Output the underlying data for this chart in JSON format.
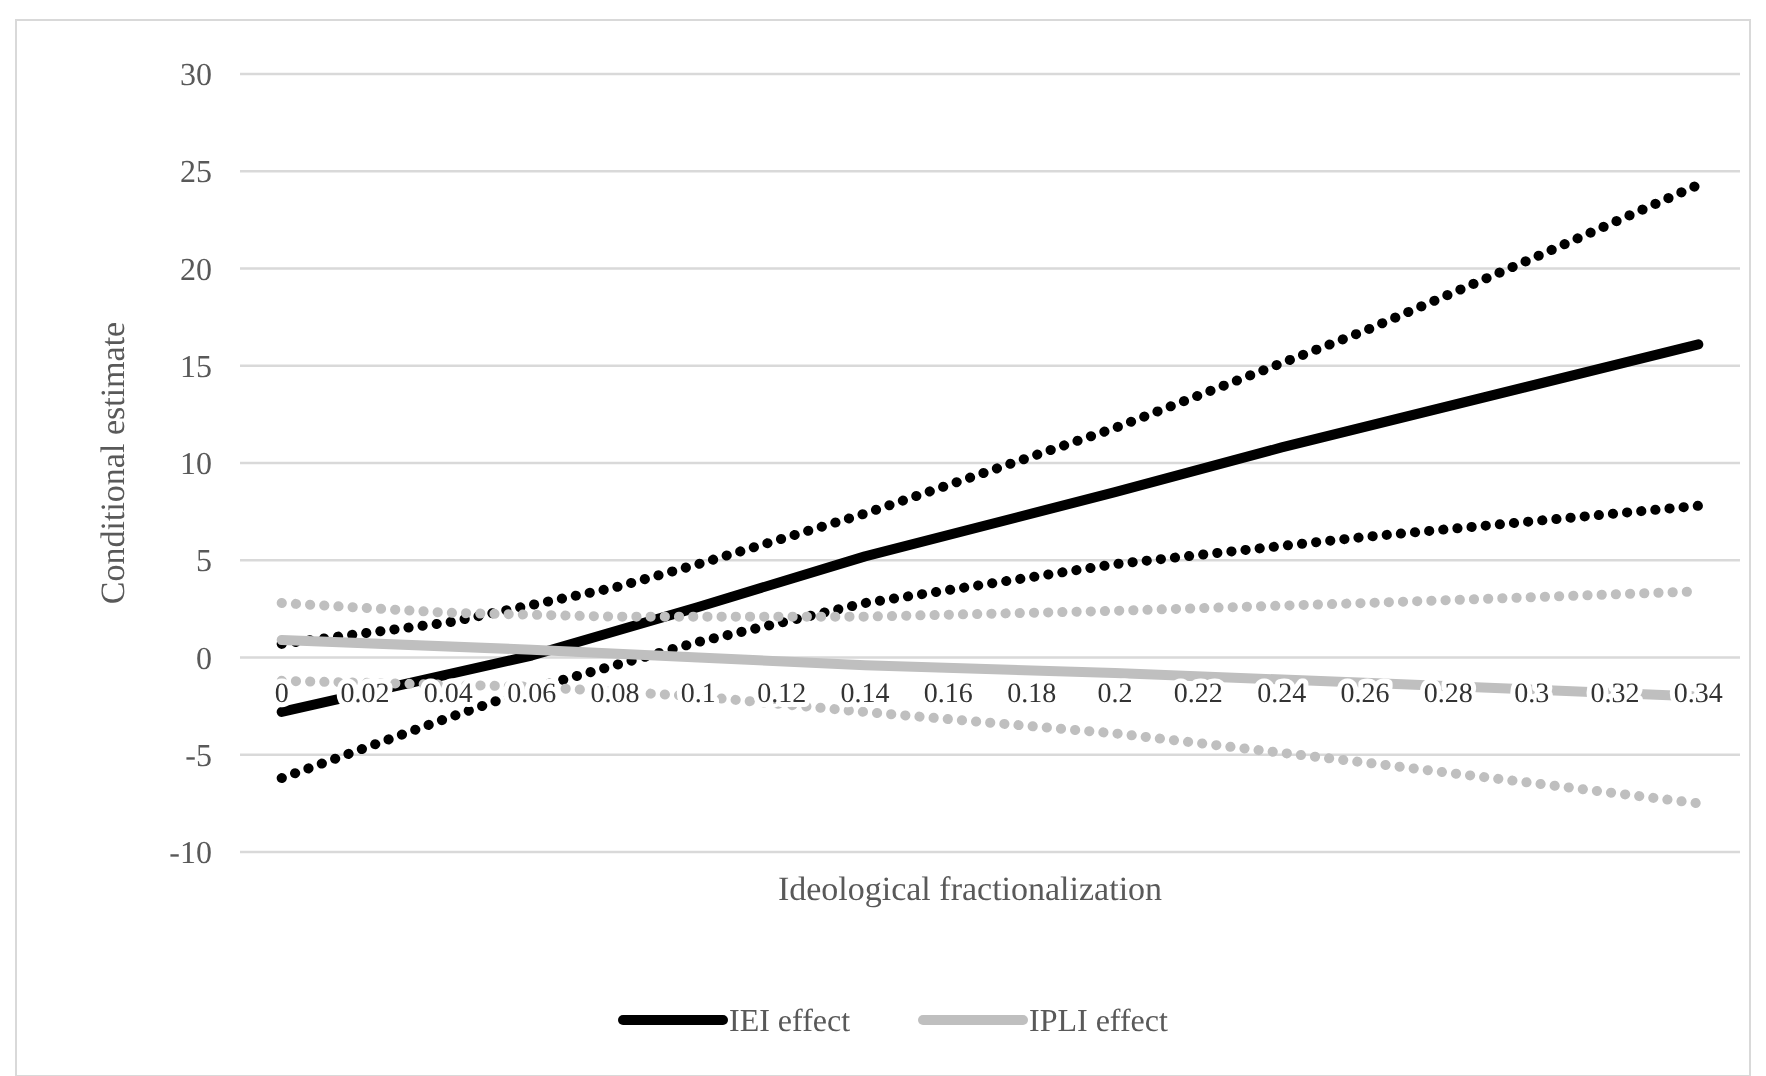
{
  "chart_data": {
    "type": "line",
    "xlabel": "Ideological fractionalization",
    "ylabel": "Conditional estimate",
    "xlim": [
      -0.01,
      0.35
    ],
    "xticks": [
      0,
      0.02,
      0.04,
      0.06,
      0.08,
      0.1,
      0.12,
      0.14,
      0.16,
      0.18,
      0.2,
      0.22,
      0.24,
      0.26,
      0.28,
      0.3,
      0.32,
      0.34
    ],
    "ylim": [
      -10,
      30
    ],
    "yticks": [
      -10,
      -5,
      0,
      5,
      10,
      15,
      20,
      25,
      30
    ],
    "grid": "y",
    "legend": "bottom",
    "marker": "none",
    "series": [
      {
        "name": "IEI effect",
        "color": "#000000",
        "line_style": "solid",
        "x": [
          0,
          0.06,
          0.1,
          0.14,
          0.2,
          0.24,
          0.34
        ],
        "values": [
          -2.8,
          0.1,
          2.6,
          5.2,
          8.5,
          10.8,
          16.1
        ]
      },
      {
        "color": "#000000",
        "line_style": "dotted",
        "x": [
          0,
          0.04,
          0.08,
          0.1,
          0.14,
          0.2,
          0.26,
          0.3,
          0.34
        ],
        "values": [
          0.7,
          1.8,
          3.6,
          4.8,
          7.4,
          11.8,
          16.8,
          20.5,
          24.3
        ]
      },
      {
        "color": "#000000",
        "line_style": "dotted",
        "x": [
          0,
          0.04,
          0.06,
          0.1,
          0.14,
          0.2,
          0.26,
          0.34
        ],
        "values": [
          -6.2,
          -3.1,
          -1.6,
          0.8,
          2.8,
          4.8,
          6.2,
          7.8
        ]
      },
      {
        "name": "IPLI effect",
        "color": "#bfbfbf",
        "line_style": "solid",
        "x": [
          0,
          0.06,
          0.1,
          0.14,
          0.2,
          0.26,
          0.34
        ],
        "values": [
          0.9,
          0.4,
          0,
          -0.4,
          -0.8,
          -1.3,
          -2.0
        ]
      },
      {
        "color": "#bfbfbf",
        "line_style": "dotted",
        "x": [
          0,
          0.04,
          0.08,
          0.14,
          0.2,
          0.26,
          0.34
        ],
        "values": [
          2.8,
          2.3,
          2.1,
          2.1,
          2.4,
          2.8,
          3.4
        ]
      },
      {
        "color": "#bfbfbf",
        "line_style": "dotted",
        "x": [
          0,
          0.06,
          0.1,
          0.14,
          0.2,
          0.26,
          0.34
        ],
        "values": [
          -1.2,
          -1.5,
          -2.0,
          -2.8,
          -3.9,
          -5.4,
          -7.5
        ]
      }
    ]
  }
}
